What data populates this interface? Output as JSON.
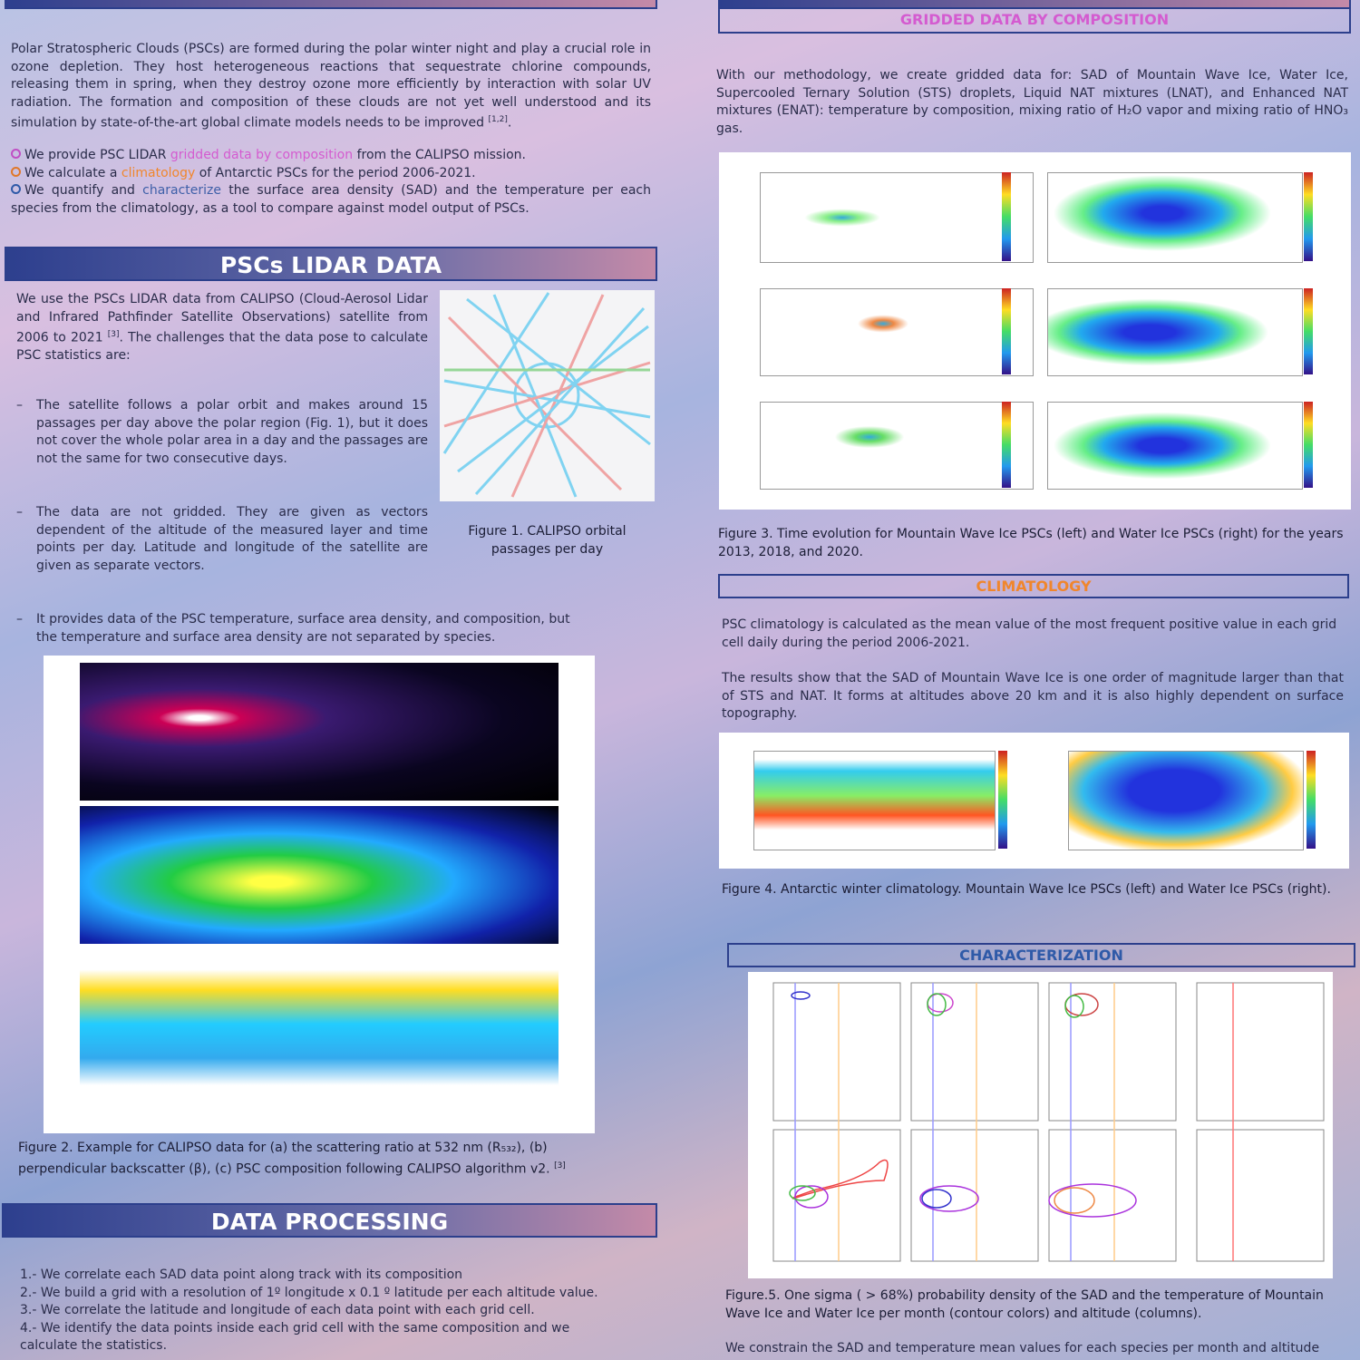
{
  "intro": {
    "paragraph": "Polar Stratospheric Clouds (PSCs) are formed during the polar winter night and play a crucial role in ozone depletion. They host heterogeneous reactions that sequestrate chlorine compounds, releasing them in spring, when they destroy ozone more efficiently by interaction with solar UV radiation. The formation and composition of these clouds are not yet well understood and its simulation by state-of-the-art global climate models needs to be improved",
    "paragraph_ref": "[1,2]",
    "bullets": [
      {
        "before": "We provide PSC LIDAR",
        "highlight": "gridded data by composition",
        "after": "from the CALIPSO mission."
      },
      {
        "before": "We calculate a",
        "highlight": "climatology",
        "after": "of Antarctic PSCs for the period 2006-2021."
      },
      {
        "before": "We quantify and",
        "highlight": "characterize",
        "after": "the surface area density (SAD) and the temperature per each species from the climatology, as a tool to compare against model output of PSCs."
      }
    ]
  },
  "lidar": {
    "title": "PSCs LIDAR DATA",
    "paragraph": "We use the PSCs LIDAR data from CALIPSO (Cloud-Aerosol Lidar and Infrared Pathfinder Satellite Observations) satellite from 2006 to 2021",
    "paragraph_ref": "[3]",
    "paragraph_end": ". The challenges that the data pose to calculate PSC statistics are:",
    "bullets": [
      "The satellite follows a polar orbit and makes around 15 passages per day above the polar region (Fig. 1), but it does not cover the whole polar area in a day and the passages are not the same for two consecutive days.",
      "The data are not gridded. They are given as vectors dependent of the altitude of the measured layer and time points per day. Latitude and longitude of the satellite are given as separate vectors.",
      "It provides data of the PSC temperature, surface area density, and composition, but the temperature and surface area density are not separated by species."
    ],
    "figure1_caption": "Figure 1. CALIPSO orbital passages per day",
    "figure2_caption": "Figure 2.  Example for CALIPSO data for (a) the scattering ratio at 532 nm (R₅₃₂), (b) perpendicular backscatter (β), (c) PSC composition following CALIPSO algorithm v2.",
    "figure2_ref": "[3]"
  },
  "processing": {
    "title": "DATA PROCESSING",
    "steps": [
      "1.- We correlate each SAD data point along track with its composition",
      "2.- We build a grid with a resolution of 1º longitude x 0.1 º latitude per each altitude value.",
      "3.- We correlate the latitude and longitude of each data point with each grid cell.",
      "4.- We identify the data points inside each grid cell with the same composition and we calculate the statistics."
    ]
  },
  "gridded": {
    "title": "GRIDDED DATA BY COMPOSITION",
    "paragraph": "With our methodology, we create gridded data for: SAD of Mountain Wave Ice, Water Ice, Supercooled Ternary Solution (STS) droplets, Liquid NAT mixtures (LNAT), and Enhanced NAT mixtures (ENAT): temperature by composition, mixing ratio of H₂O vapor and mixing ratio of HNO₃ gas.",
    "figure3_caption": "Figure 3. Time evolution for Mountain Wave Ice PSCs (left) and Water Ice PSCs (right) for the years 2013, 2018, and 2020."
  },
  "climatology": {
    "title": "CLIMATOLOGY",
    "paragraphs": [
      "PSC climatology is calculated as the mean value of the most frequent positive value in each grid cell daily during the period 2006-2021.",
      "The results show that the SAD of Mountain Wave Ice is one order of magnitude larger than that of STS and NAT. It forms at altitudes above 20 km and it is also highly dependent on surface topography."
    ],
    "figure4_caption": "Figure 4. Antarctic winter climatology. Mountain Wave Ice PSCs (left) and Water Ice PSCs (right)."
  },
  "characterization": {
    "title": "CHARACTERIZATION",
    "figure5_caption": "Figure.5.  One sigma ( > 68%) probability density of the SAD and the temperature of Mountain Wave Ice and Water Ice  per month (contour colors) and altitude (columns).",
    "paragraph": "We constrain the SAD and temperature mean values for each species  per month and altitude"
  }
}
